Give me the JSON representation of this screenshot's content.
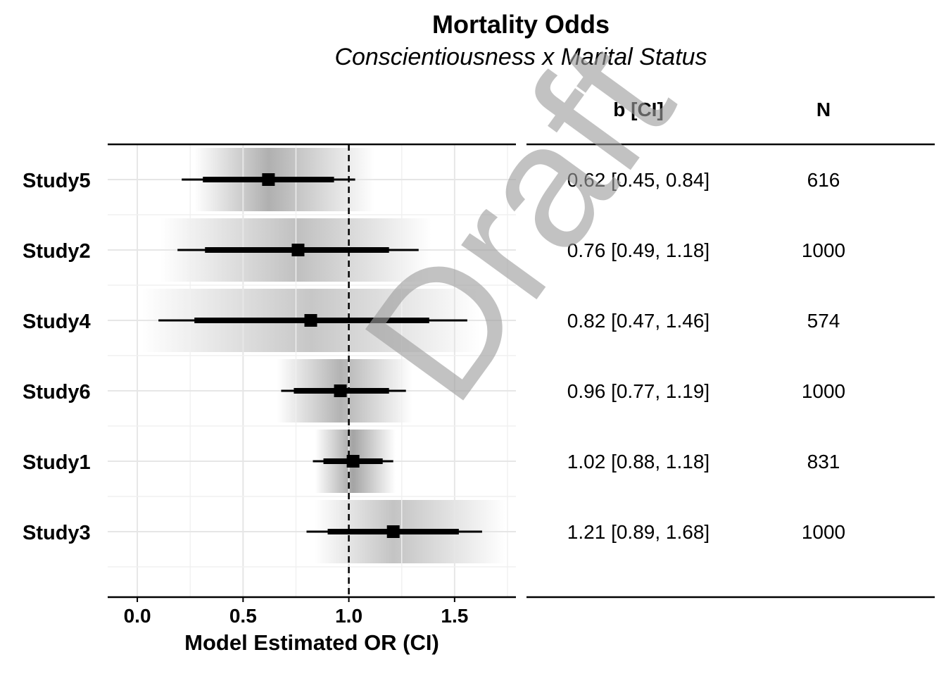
{
  "title": "Mortality Odds",
  "subtitle": "Conscientiousness x Marital Status",
  "watermark": "Draft",
  "chart_data": {
    "type": "forest",
    "title": "Mortality Odds",
    "subtitle": "Conscientiousness x Marital Status",
    "xlabel": "Model Estimated OR (CI)",
    "xlim": [
      -0.14,
      1.79
    ],
    "xticks": [
      0.0,
      0.5,
      1.0,
      1.5
    ],
    "xtick_labels": [
      "0.0",
      "0.5",
      "1.0",
      "1.5"
    ],
    "reference_line": 1.0,
    "grid": true,
    "columns": [
      "b [CI]",
      "N"
    ],
    "rows": [
      {
        "label": "Study5",
        "estimate": 0.62,
        "ci_low": 0.45,
        "ci_high": 0.84,
        "outer_low": 0.21,
        "outer_high": 1.03,
        "inner_low": 0.31,
        "inner_high": 0.93,
        "ci_text": "0.62 [0.45, 0.84]",
        "n": "616",
        "shade_low": 0.27,
        "shade_high": 1.12
      },
      {
        "label": "Study2",
        "estimate": 0.76,
        "ci_low": 0.49,
        "ci_high": 1.18,
        "outer_low": 0.19,
        "outer_high": 1.33,
        "inner_low": 0.32,
        "inner_high": 1.19,
        "ci_text": "0.76 [0.49, 1.18]",
        "n": "1000",
        "shade_low": 0.11,
        "shade_high": 1.39
      },
      {
        "label": "Study4",
        "estimate": 0.82,
        "ci_low": 0.47,
        "ci_high": 1.46,
        "outer_low": 0.1,
        "outer_high": 1.56,
        "inner_low": 0.27,
        "inner_high": 1.38,
        "ci_text": "0.82 [0.47, 1.46]",
        "n": "574",
        "shade_low": 0.02,
        "shade_high": 1.62
      },
      {
        "label": "Study6",
        "estimate": 0.96,
        "ci_low": 0.77,
        "ci_high": 1.19,
        "outer_low": 0.68,
        "outer_high": 1.27,
        "inner_low": 0.74,
        "inner_high": 1.19,
        "ci_text": "0.96 [0.77, 1.19]",
        "n": "1000",
        "shade_low": 0.66,
        "shade_high": 1.3
      },
      {
        "label": "Study1",
        "estimate": 1.02,
        "ci_low": 0.88,
        "ci_high": 1.18,
        "outer_low": 0.83,
        "outer_high": 1.21,
        "inner_low": 0.88,
        "inner_high": 1.16,
        "ci_text": "1.02 [0.88, 1.18]",
        "n": "831",
        "shade_low": 0.84,
        "shade_high": 1.22
      },
      {
        "label": "Study3",
        "estimate": 1.21,
        "ci_low": 0.89,
        "ci_high": 1.68,
        "outer_low": 0.8,
        "outer_high": 1.63,
        "inner_low": 0.9,
        "inner_high": 1.52,
        "ci_text": "1.21 [0.89, 1.68]",
        "n": "1000",
        "shade_low": 0.84,
        "shade_high": 1.74
      }
    ]
  }
}
